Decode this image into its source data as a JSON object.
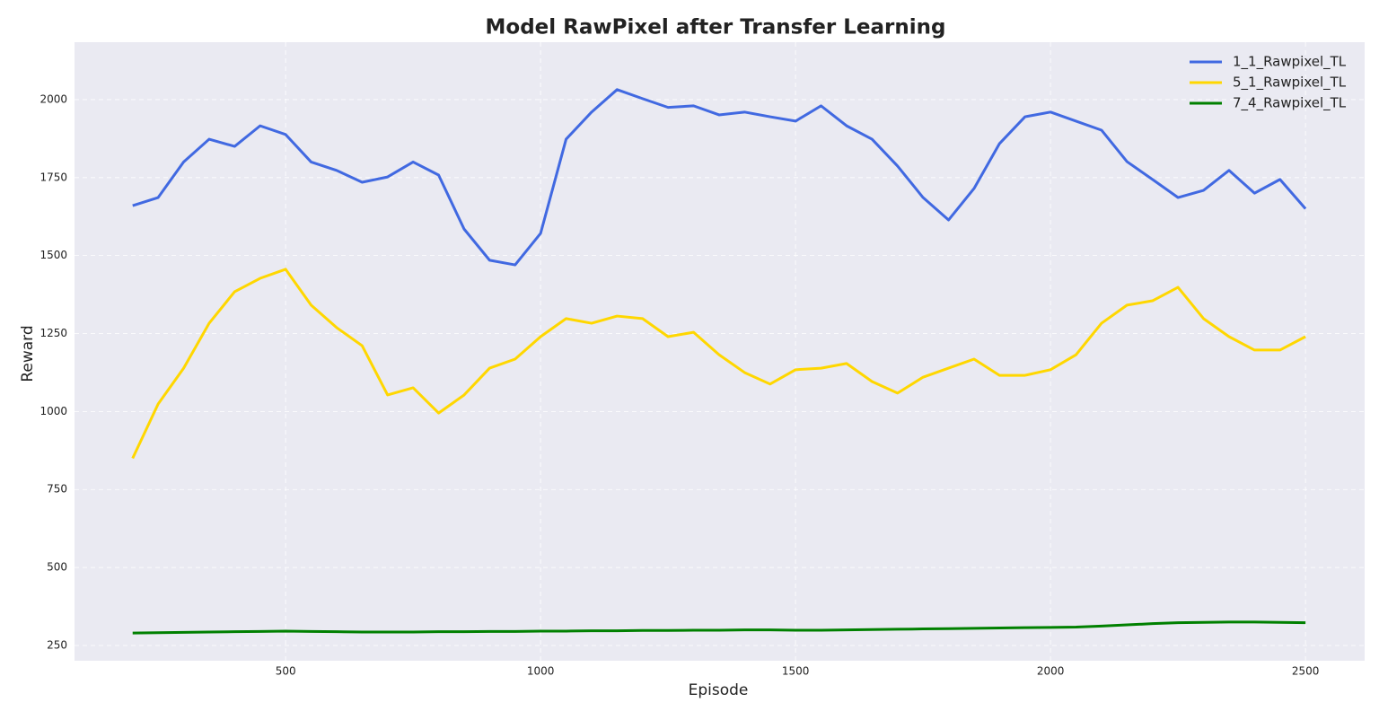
{
  "chart_data": {
    "type": "line",
    "title": "Model RawPixel after Transfer Learning",
    "x_label": "Episode",
    "y_label": "Reward",
    "x": [
      200,
      250,
      300,
      350,
      400,
      450,
      500,
      550,
      600,
      650,
      700,
      750,
      800,
      850,
      900,
      950,
      1000,
      1050,
      1100,
      1150,
      1200,
      1250,
      1300,
      1350,
      1400,
      1450,
      1500,
      1550,
      1600,
      1650,
      1700,
      1750,
      1800,
      1850,
      1900,
      1950,
      2000,
      2050,
      2100,
      2150,
      2200,
      2250,
      2300,
      2350,
      2400,
      2450,
      2500
    ],
    "series": [
      {
        "name": "1_1_Rawpixel_TL",
        "color": "#4169e1",
        "values": [
          1660,
          1686,
          1800,
          1873,
          1850,
          1916,
          1888,
          1800,
          1773,
          1735,
          1752,
          1800,
          1758,
          1585,
          1485,
          1470,
          1571,
          1873,
          1960,
          2032,
          2003,
          1975,
          1980,
          1951,
          1960,
          1945,
          1931,
          1980,
          1916,
          1873,
          1787,
          1686,
          1614,
          1715,
          1859,
          1945,
          1960,
          1931,
          1902,
          1801,
          1744,
          1686,
          1709,
          1773,
          1700,
          1744,
          1650
        ]
      },
      {
        "name": "5_1_Rawpixel_TL",
        "color": "#ffd700",
        "values": [
          850,
          1024,
          1139,
          1283,
          1384,
          1427,
          1456,
          1341,
          1269,
          1211,
          1053,
          1076,
          995,
          1053,
          1139,
          1168,
          1240,
          1298,
          1283,
          1306,
          1298,
          1240,
          1254,
          1182,
          1125,
          1088,
          1134,
          1139,
          1154,
          1096,
          1059,
          1110,
          1139,
          1168,
          1116,
          1116,
          1134,
          1182,
          1283,
          1341,
          1355,
          1398,
          1298,
          1240,
          1197,
          1197,
          1240
        ]
      },
      {
        "name": "7_4_Rawpixel_TL",
        "color": "#008000",
        "values": [
          290,
          291,
          292,
          293,
          294,
          295,
          296,
          295,
          294,
          293,
          293,
          293,
          294,
          294,
          295,
          295,
          296,
          296,
          297,
          297,
          298,
          298,
          299,
          299,
          300,
          300,
          299,
          299,
          300,
          301,
          302,
          303,
          304,
          305,
          306,
          307,
          308,
          309,
          312,
          316,
          320,
          323,
          324,
          325,
          325,
          324,
          323
        ]
      }
    ],
    "xlim": [
      86,
      2616
    ],
    "ylim": [
      201,
      2184
    ],
    "xticks": [
      500,
      1000,
      1500,
      2000,
      2500
    ],
    "yticks": [
      250,
      500,
      750,
      1000,
      1250,
      1500,
      1750,
      2000
    ],
    "grid": true,
    "legend": "upper right"
  }
}
